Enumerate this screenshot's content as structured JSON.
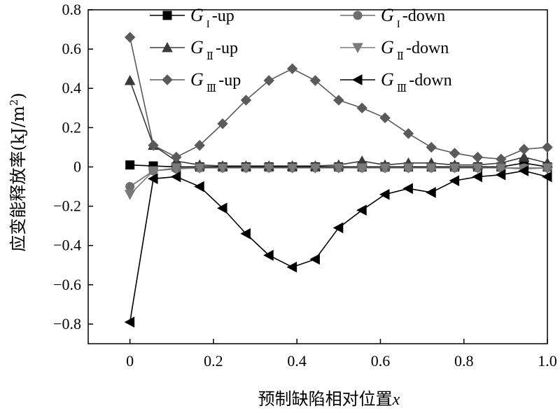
{
  "chart_data": {
    "type": "line",
    "xlabel": "预制缺陷相对位置x",
    "ylabel": "应变能释放率(kJ/m²)",
    "xlim": [
      -0.1,
      1.0
    ],
    "ylim": [
      -0.9,
      0.8
    ],
    "xticks": [
      {
        "value": 0,
        "label": "0"
      },
      {
        "value": 0.2,
        "label": "0.2"
      },
      {
        "value": 0.4,
        "label": "0.4"
      },
      {
        "value": 0.6,
        "label": "0.6"
      },
      {
        "value": 0.8,
        "label": "0.8"
      },
      {
        "value": 1.0,
        "label": "1.0"
      }
    ],
    "yticks": [
      {
        "value": 0.8,
        "label": "0.8"
      },
      {
        "value": 0.6,
        "label": "0.6"
      },
      {
        "value": 0.4,
        "label": "0.4"
      },
      {
        "value": 0.2,
        "label": "0.2"
      },
      {
        "value": 0,
        "label": "0"
      },
      {
        "value": -0.2,
        "label": "−0.2"
      },
      {
        "value": -0.4,
        "label": "−0.4"
      },
      {
        "value": -0.6,
        "label": "−0.6"
      },
      {
        "value": -0.8,
        "label": "−0.8"
      }
    ],
    "grid": false,
    "legend_position": "top",
    "series": [
      {
        "name": "G_I-up",
        "legend_main": "G",
        "legend_sub": "I",
        "legend_suffix": "-up",
        "marker": "square",
        "color": "#000000",
        "x": [
          0,
          0.056,
          0.111,
          0.167,
          0.222,
          0.278,
          0.333,
          0.389,
          0.444,
          0.5,
          0.556,
          0.611,
          0.667,
          0.722,
          0.778,
          0.833,
          0.889,
          0.944,
          1.0
        ],
        "y": [
          0.01,
          0.005,
          0.0,
          0.0,
          0.0,
          0.0,
          0.0,
          0.0,
          0.0,
          0.0,
          0.0,
          0.0,
          0.0,
          0.0,
          0.0,
          0.0,
          0.0,
          0.02,
          0.0
        ]
      },
      {
        "name": "G_I-down",
        "legend_main": "G",
        "legend_sub": "I",
        "legend_suffix": "-down",
        "marker": "circle",
        "color": "#6e6e6e",
        "x": [
          0,
          0.056,
          0.111,
          0.167,
          0.222,
          0.278,
          0.333,
          0.389,
          0.444,
          0.5,
          0.556,
          0.611,
          0.667,
          0.722,
          0.778,
          0.833,
          0.889,
          0.944,
          1.0
        ],
        "y": [
          -0.1,
          -0.02,
          -0.01,
          -0.005,
          -0.005,
          -0.005,
          -0.005,
          -0.005,
          -0.005,
          -0.005,
          -0.005,
          -0.005,
          -0.005,
          -0.005,
          -0.005,
          -0.005,
          -0.005,
          -0.005,
          -0.005
        ]
      },
      {
        "name": "G_II-up",
        "legend_main": "G",
        "legend_sub": "Ⅱ",
        "legend_suffix": "-up",
        "marker": "triangle-up",
        "color": "#3a3a3a",
        "x": [
          0,
          0.056,
          0.111,
          0.167,
          0.222,
          0.278,
          0.333,
          0.389,
          0.444,
          0.5,
          0.556,
          0.611,
          0.667,
          0.722,
          0.778,
          0.833,
          0.889,
          0.944,
          1.0
        ],
        "y": [
          0.44,
          0.11,
          0.03,
          0.01,
          0.005,
          0.005,
          0.005,
          0.005,
          0.005,
          0.01,
          0.03,
          0.01,
          0.02,
          0.02,
          0.01,
          0.01,
          0.02,
          0.05,
          0.02
        ]
      },
      {
        "name": "G_II-down",
        "legend_main": "G",
        "legend_sub": "Ⅱ",
        "legend_suffix": "-down",
        "marker": "triangle-down",
        "color": "#7a7a7a",
        "x": [
          0,
          0.056,
          0.111,
          0.167,
          0.222,
          0.278,
          0.333,
          0.389,
          0.444,
          0.5,
          0.556,
          0.611,
          0.667,
          0.722,
          0.778,
          0.833,
          0.889,
          0.944,
          1.0
        ],
        "y": [
          -0.14,
          -0.02,
          -0.005,
          -0.005,
          -0.005,
          -0.005,
          -0.005,
          -0.005,
          -0.005,
          -0.005,
          -0.005,
          -0.005,
          -0.005,
          -0.005,
          -0.005,
          -0.005,
          -0.005,
          -0.01,
          -0.005
        ]
      },
      {
        "name": "G_III-up",
        "legend_main": "G",
        "legend_sub": "Ⅲ",
        "legend_suffix": "-up",
        "marker": "diamond",
        "color": "#5a5a5a",
        "x": [
          0,
          0.056,
          0.111,
          0.167,
          0.222,
          0.278,
          0.333,
          0.389,
          0.444,
          0.5,
          0.556,
          0.611,
          0.667,
          0.722,
          0.778,
          0.833,
          0.889,
          0.944,
          1.0
        ],
        "y": [
          0.66,
          0.11,
          0.05,
          0.11,
          0.22,
          0.34,
          0.44,
          0.5,
          0.44,
          0.34,
          0.3,
          0.25,
          0.17,
          0.1,
          0.07,
          0.05,
          0.04,
          0.09,
          0.1
        ]
      },
      {
        "name": "G_III-down",
        "legend_main": "G",
        "legend_sub": "Ⅲ",
        "legend_suffix": "-down",
        "marker": "triangle-left",
        "color": "#000000",
        "x": [
          0,
          0.056,
          0.111,
          0.167,
          0.222,
          0.278,
          0.333,
          0.389,
          0.444,
          0.5,
          0.556,
          0.611,
          0.667,
          0.722,
          0.778,
          0.833,
          0.889,
          0.944,
          1.0
        ],
        "y": [
          -0.79,
          -0.06,
          -0.05,
          -0.1,
          -0.21,
          -0.34,
          -0.45,
          -0.51,
          -0.47,
          -0.31,
          -0.22,
          -0.14,
          -0.11,
          -0.13,
          -0.07,
          -0.05,
          -0.04,
          -0.02,
          -0.05
        ]
      }
    ]
  }
}
